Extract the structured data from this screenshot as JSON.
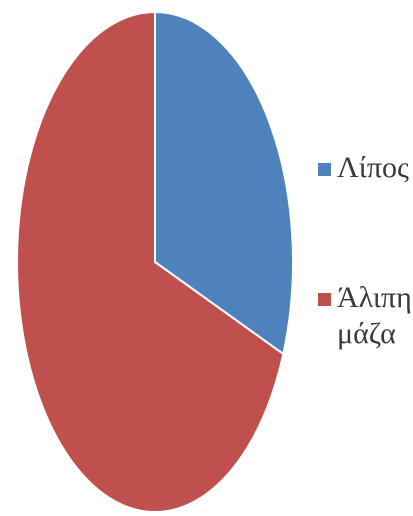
{
  "chart_data": {
    "type": "pie",
    "title": "",
    "start_angle_deg": 90,
    "direction": "clockwise",
    "series": [
      {
        "name": "Λίπος",
        "value": 31,
        "color": "#4f81bd"
      },
      {
        "name": "Άλιπη\nμάζα",
        "value": 69,
        "color": "#c0504d"
      }
    ],
    "legend": {
      "position": "right"
    }
  }
}
